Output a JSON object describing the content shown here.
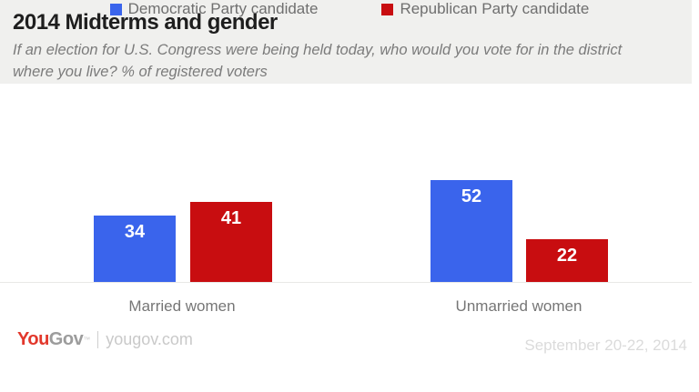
{
  "header": {
    "title": "2014 Midterms and gender",
    "subtitle_line1": "If an election for U.S. Congress were being held today, who would you vote for in the district",
    "subtitle_line2": "where you live? % of registered voters"
  },
  "legend": [
    {
      "label": "Democratic Party candidate",
      "color": "#3a64ec"
    },
    {
      "label": "Republican Party candidate",
      "color": "#c80d10"
    }
  ],
  "chart_data": {
    "type": "bar",
    "title": "2014 Midterms and gender",
    "subtitle": "If an election for U.S. Congress were being held today, who would you vote for in the district where you live? % of registered voters",
    "categories": [
      "Married women",
      "Unmarried women"
    ],
    "series": [
      {
        "name": "Democratic Party candidate",
        "color": "#3a64ec",
        "values": [
          34,
          52
        ]
      },
      {
        "name": "Republican Party candidate",
        "color": "#c80d10",
        "values": [
          41,
          22
        ]
      }
    ],
    "ylim": [
      0,
      55
    ],
    "grid": false,
    "legend_position": "top",
    "value_labels": "inside top of bars, white bold",
    "xlabel": "",
    "ylabel": "% of registered voters"
  },
  "footer": {
    "logo_you": "You",
    "logo_gov": "Gov",
    "logo_mark": "™",
    "logo_site": "yougov.com",
    "date": "September 20-22, 2014"
  },
  "colors": {
    "header_background": "#f0f0ee",
    "democratic_blue": "#3a64ec",
    "republican_red": "#c80d10",
    "axis_line": "#e8e8e6",
    "logo_red": "#e2382c"
  }
}
